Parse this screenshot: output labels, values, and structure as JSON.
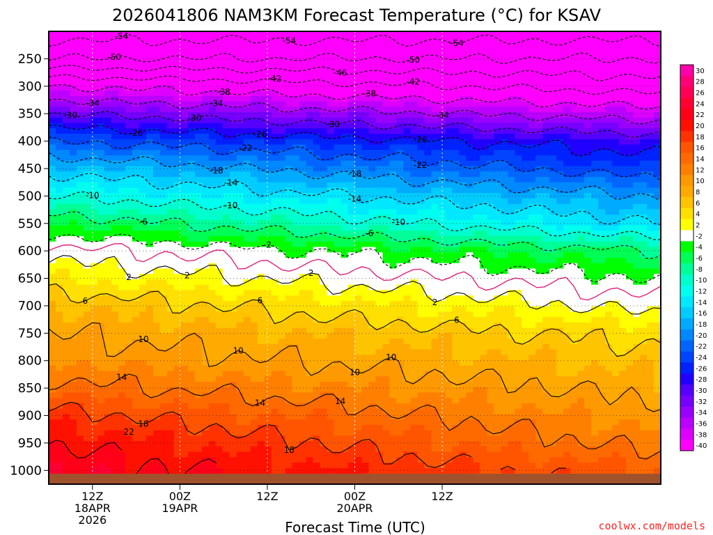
{
  "chart_data": {
    "type": "heatmap",
    "title": "2026041806 NAM3KM Forecast Temperature (°C) for KSAV",
    "xlabel": "Forecast Time (UTC)",
    "ylabel": "",
    "credit": "coolwx.com/models",
    "y_pressure_levels_hPa": [
      250,
      300,
      350,
      400,
      450,
      500,
      550,
      600,
      650,
      700,
      750,
      800,
      850,
      900,
      950,
      1000
    ],
    "ylim_hPa": [
      200,
      1025
    ],
    "xlim_forecast_hours": [
      0,
      84
    ],
    "x_ticks": [
      {
        "hour": 6,
        "lines": [
          "12Z",
          "18APR",
          "2026"
        ]
      },
      {
        "hour": 18,
        "lines": [
          "00Z",
          "19APR"
        ]
      },
      {
        "hour": 30,
        "lines": [
          "12Z"
        ]
      },
      {
        "hour": 42,
        "lines": [
          "00Z",
          "20APR"
        ]
      },
      {
        "hour": 54,
        "lines": [
          "12Z"
        ]
      }
    ],
    "colorbar": {
      "levels": [
        30,
        28,
        26,
        24,
        22,
        20,
        18,
        16,
        14,
        12,
        10,
        8,
        6,
        4,
        2,
        -2,
        -4,
        -6,
        -8,
        -10,
        -12,
        -14,
        -16,
        -18,
        -20,
        -22,
        -24,
        -26,
        -28,
        -30,
        -32,
        -34,
        -36,
        -38,
        -40
      ],
      "colors": [
        "#ff00aa",
        "#ff0077",
        "#ff0055",
        "#ff0033",
        "#ff0018",
        "#ff1100",
        "#ff3300",
        "#ff5500",
        "#ff6a00",
        "#ff8000",
        "#ff9900",
        "#ffaa00",
        "#ffc400",
        "#ffe000",
        "#ffff00",
        "#ffffff",
        "#00ff00",
        "#00ff55",
        "#00ff99",
        "#00ffcc",
        "#00ffee",
        "#00e8ff",
        "#00ccff",
        "#00aaff",
        "#0088ff",
        "#0066ff",
        "#0044ff",
        "#0022ff",
        "#2200ff",
        "#5500ff",
        "#7700ff",
        "#9900ff",
        "#bb00ff",
        "#dd00ff",
        "#ff00ff"
      ]
    },
    "temperature_contours_C": [
      {
        "value": -54,
        "style": "dashed",
        "label_positions_hours": [
          10,
          33,
          56
        ],
        "label_level_hPa": 210
      },
      {
        "value": -50,
        "style": "dashed",
        "label_positions_hours": [
          9,
          50
        ],
        "label_level_hPa": 225
      },
      {
        "value": -46,
        "style": "dashed",
        "label_positions_hours": [
          40
        ],
        "label_level_hPa": 268
      },
      {
        "value": -42,
        "style": "dashed",
        "label_positions_hours": [
          31,
          50
        ],
        "label_level_hPa": 282
      },
      {
        "value": -38,
        "style": "dashed",
        "label_positions_hours": [
          24,
          44
        ],
        "label_level_hPa": 305
      },
      {
        "value": -34,
        "style": "dashed",
        "label_positions_hours": [
          6,
          23,
          54
        ],
        "label_level_hPa": 325
      },
      {
        "value": -30,
        "style": "dashed",
        "label_positions_hours": [
          3,
          20,
          39
        ],
        "label_level_hPa": 345
      },
      {
        "value": -26,
        "style": "dashed",
        "label_positions_hours": [
          12,
          29,
          51
        ],
        "label_level_hPa": 370
      },
      {
        "value": -22,
        "style": "dashed",
        "label_positions_hours": [
          27,
          51
        ],
        "label_level_hPa": 405
      },
      {
        "value": -18,
        "style": "dashed",
        "label_positions_hours": [
          23,
          42
        ],
        "label_level_hPa": 430
      },
      {
        "value": -14,
        "style": "dashed",
        "label_positions_hours": [
          25,
          42
        ],
        "label_level_hPa": 460
      },
      {
        "value": -10,
        "style": "dashed",
        "label_positions_hours": [
          6,
          25,
          48
        ],
        "label_level_hPa": 495
      },
      {
        "value": -6,
        "style": "dashed",
        "label_positions_hours": [
          13,
          44
        ],
        "label_level_hPa": 530
      },
      {
        "value": -2,
        "style": "dashed",
        "label_positions_hours": [
          30
        ],
        "label_level_hPa": 590
      },
      {
        "value": 0,
        "style": "freezing-line",
        "label_positions_hours": [],
        "label_level_hPa": 600
      },
      {
        "value": 2,
        "style": "solid",
        "label_positions_hours": [
          11,
          19,
          36,
          53
        ],
        "label_level_hPa": 640
      },
      {
        "value": 6,
        "style": "solid",
        "label_positions_hours": [
          5,
          29,
          56
        ],
        "label_level_hPa": 680
      },
      {
        "value": 10,
        "style": "solid",
        "label_positions_hours": [
          13,
          26,
          42,
          47
        ],
        "label_level_hPa": 720
      },
      {
        "value": 14,
        "style": "solid",
        "label_positions_hours": [
          10,
          29,
          40
        ],
        "label_level_hPa": 840
      },
      {
        "value": 18,
        "style": "solid",
        "label_positions_hours": [
          13,
          33
        ],
        "label_level_hPa": 880
      },
      {
        "value": 22,
        "style": "solid",
        "label_positions_hours": [
          11
        ],
        "label_level_hPa": 930
      }
    ],
    "profile_temperature_C": {
      "levels_hPa": [
        200,
        250,
        300,
        350,
        400,
        450,
        500,
        550,
        600,
        650,
        700,
        750,
        800,
        850,
        900,
        950,
        1000
      ],
      "start_hour_0": [
        -56,
        -50,
        -38,
        -30,
        -22,
        -15,
        -10,
        -4,
        1,
        4,
        8,
        10,
        12,
        15,
        19,
        22,
        24
      ],
      "end_hour_84": [
        -56,
        -50,
        -44,
        -36,
        -28,
        -24,
        -18,
        -14,
        -6,
        -2,
        1,
        5,
        7,
        9,
        11,
        13,
        16
      ]
    }
  }
}
